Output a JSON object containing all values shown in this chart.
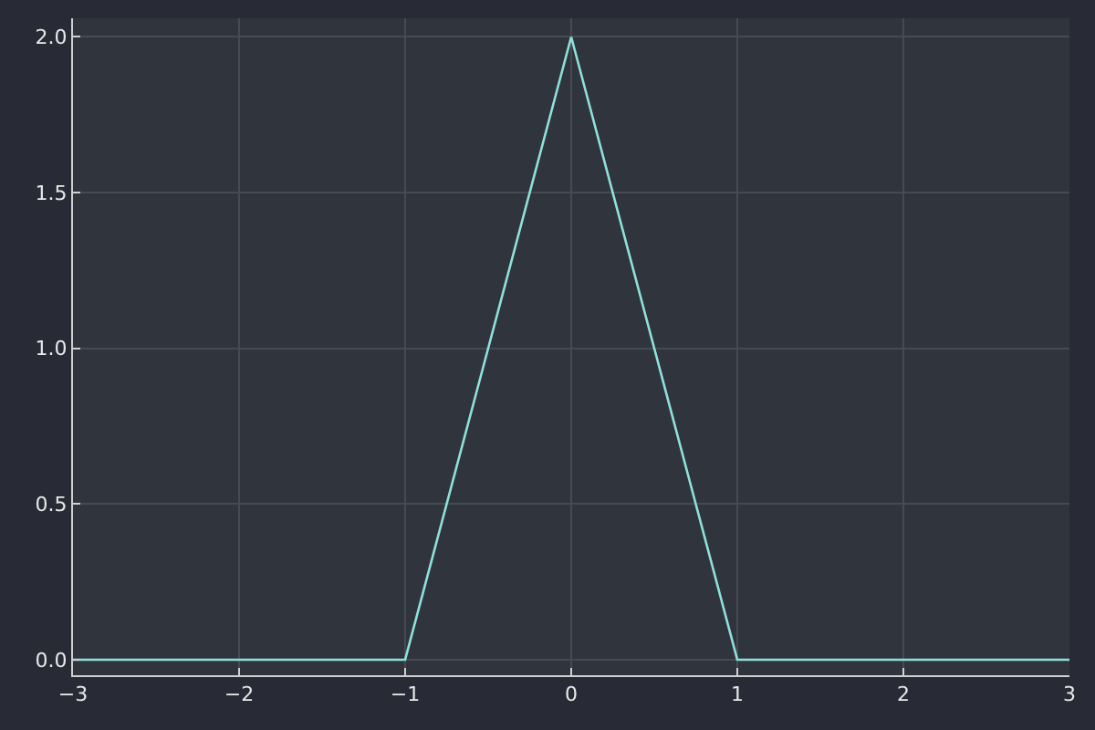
{
  "chart_data": {
    "type": "line",
    "x": [
      -3,
      -1,
      0,
      1,
      3
    ],
    "series": [
      {
        "color": "#8fe0dc",
        "values": [
          0,
          0,
          2,
          0,
          0
        ]
      }
    ],
    "xlim": [
      -3,
      3
    ],
    "xticks": [
      {
        "value": -3,
        "label": "−3"
      },
      {
        "value": -2,
        "label": "−2"
      },
      {
        "value": -1,
        "label": "−1"
      },
      0,
      1,
      2,
      3
    ],
    "ylim": [
      -0.05,
      2.06
    ],
    "yticks": [
      {
        "value": 0,
        "label": "0.0"
      },
      0.5,
      {
        "value": 1,
        "label": "1.0"
      },
      1.5,
      {
        "value": 2,
        "label": "2.0"
      }
    ],
    "grid": true,
    "legend": false,
    "marker": "none",
    "line_style": "solid"
  }
}
